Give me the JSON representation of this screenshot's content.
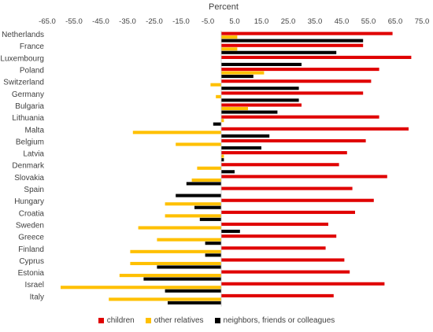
{
  "chart_data": {
    "type": "bar",
    "orientation": "horizontal",
    "title": "Percent",
    "xlim": [
      -65,
      75
    ],
    "x_ticks": [
      "-65.0",
      "-55.0",
      "-45.0",
      "-35.0",
      "-25.0",
      "-15.0",
      "-5.0",
      "5.0",
      "15.0",
      "25.0",
      "35.0",
      "45.0",
      "55.0",
      "65.0",
      "75.0"
    ],
    "x_tick_values": [
      -65,
      -55,
      -45,
      -35,
      -25,
      -15,
      -5,
      5,
      15,
      25,
      35,
      45,
      55,
      65,
      75
    ],
    "categories": [
      "Netherlands",
      "France",
      "Luxembourg",
      "Poland",
      "Switzerland",
      "Germany",
      "Bulgaria",
      "Lithuania",
      "Malta",
      "Belgium",
      "Latvia",
      "Denmark",
      "Slovakia",
      "Spain",
      "Hungary",
      "Croatia",
      "Sweden",
      "Greece",
      "Finland",
      "Cyprus",
      "Estonia",
      "Israel",
      "Italy"
    ],
    "series": [
      {
        "name": "children",
        "color": "#e00000",
        "values": [
          64,
          53,
          71,
          59,
          56,
          53,
          30,
          59,
          70,
          54,
          47,
          44,
          62,
          49,
          57,
          50,
          40,
          43,
          39,
          46,
          48,
          61,
          42
        ]
      },
      {
        "name": "other relatives",
        "color": "#ffc000",
        "values": [
          6,
          6,
          0,
          16,
          -4,
          -2,
          10,
          1,
          -33,
          -17,
          1,
          -9,
          -11,
          0,
          -21,
          -21,
          -31,
          -24,
          -34,
          -34,
          -38,
          -60,
          -42
        ]
      },
      {
        "name": "neighbors, friends or colleagues",
        "color": "#000000",
        "values": [
          53,
          43,
          30,
          12,
          29,
          29,
          21,
          -3,
          18,
          15,
          1,
          5,
          -13,
          -17,
          -10,
          -8,
          7,
          -6,
          -6,
          -24,
          -29,
          -21,
          -20
        ]
      }
    ],
    "legend_position": "bottom",
    "grid": false
  }
}
